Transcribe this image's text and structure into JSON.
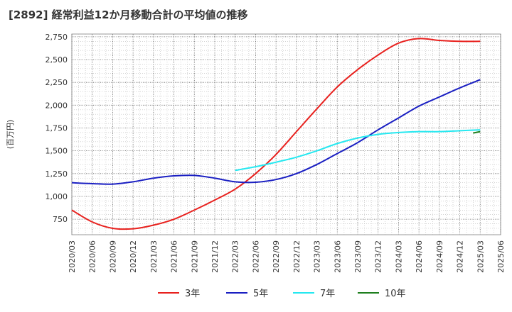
{
  "chart_data": {
    "type": "line",
    "title": "[2892]  経常利益12か月移動合計の平均値の推移",
    "ylabel": "(百万円)",
    "xlabel": "",
    "ylim": [
      580,
      2780
    ],
    "yticks": [
      750,
      1000,
      1250,
      1500,
      1750,
      2000,
      2250,
      2500,
      2750
    ],
    "ytick_labels": [
      "750",
      "1,000",
      "1,250",
      "1,500",
      "1,750",
      "2,000",
      "2,250",
      "2,500",
      "2,750"
    ],
    "x": [
      "2020/03",
      "2020/06",
      "2020/09",
      "2020/12",
      "2021/03",
      "2021/06",
      "2021/09",
      "2021/12",
      "2022/03",
      "2022/06",
      "2022/09",
      "2022/12",
      "2023/03",
      "2023/06",
      "2023/09",
      "2023/12",
      "2024/03",
      "2024/06",
      "2024/09",
      "2024/12",
      "2025/03",
      "2025/06"
    ],
    "grid": true,
    "legend_position": "bottom",
    "series": [
      {
        "name": "3年",
        "color": "#e8211e",
        "values": [
          850,
          720,
          650,
          645,
          685,
          750,
          850,
          960,
          1080,
          1250,
          1460,
          1710,
          1960,
          2200,
          2390,
          2550,
          2680,
          2730,
          2710,
          2700,
          2700,
          null
        ]
      },
      {
        "name": "5年",
        "color": "#1a1fc2",
        "values": [
          1150,
          1140,
          1135,
          1160,
          1200,
          1225,
          1230,
          1200,
          1160,
          1155,
          1185,
          1250,
          1350,
          1470,
          1590,
          1730,
          1860,
          1990,
          2090,
          2190,
          2280,
          null
        ]
      },
      {
        "name": "7年",
        "color": "#25e8f0",
        "values": [
          null,
          null,
          null,
          null,
          null,
          null,
          null,
          null,
          1285,
          1325,
          1375,
          1430,
          1500,
          1580,
          1640,
          1680,
          1700,
          1710,
          1710,
          1720,
          1730,
          null
        ]
      },
      {
        "name": "10年",
        "color": "#1f7f1f",
        "values": [
          null,
          null,
          null,
          null,
          null,
          null,
          null,
          null,
          null,
          null,
          null,
          null,
          null,
          null,
          null,
          null,
          null,
          null,
          null,
          null,
          1710,
          null
        ]
      }
    ]
  }
}
